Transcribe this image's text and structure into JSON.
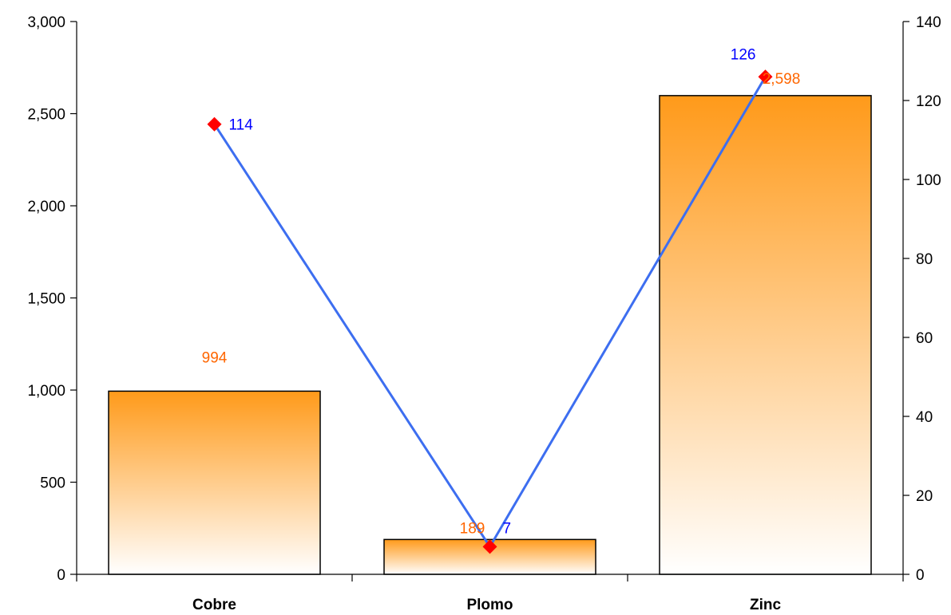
{
  "chart_data": {
    "type": "bar",
    "categories": [
      "Cobre",
      "Plomo",
      "Zinc"
    ],
    "series": [
      {
        "type": "bar",
        "axis": "left",
        "values": [
          994,
          189,
          2598
        ],
        "labels": [
          "994",
          "189",
          "2,598"
        ]
      },
      {
        "type": "line",
        "axis": "right",
        "values": [
          114,
          7,
          126
        ],
        "labels": [
          "114",
          "7",
          "126"
        ]
      }
    ],
    "y_left": {
      "min": 0,
      "max": 3000,
      "ticks": [
        0,
        500,
        1000,
        1500,
        2000,
        2500,
        3000
      ],
      "tick_labels": [
        "0",
        "500",
        "1,000",
        "1,500",
        "2,000",
        "2,500",
        "3,000"
      ]
    },
    "y_right": {
      "min": 0,
      "max": 140,
      "ticks": [
        0,
        20,
        40,
        60,
        80,
        100,
        120,
        140
      ],
      "tick_labels": [
        "0",
        "20",
        "40",
        "60",
        "80",
        "100",
        "120",
        "140"
      ]
    },
    "title": "",
    "xlabel": "",
    "ylabel": "",
    "grid": false,
    "legend": "none",
    "colors": {
      "bar_top": "#ff9a1a",
      "bar_bottom": "#ffffff",
      "bar_label": "#ff6600",
      "line": "#3d6ef0",
      "marker": "#ff0000",
      "line_label": "#0000ff",
      "axis": "#000000"
    }
  }
}
